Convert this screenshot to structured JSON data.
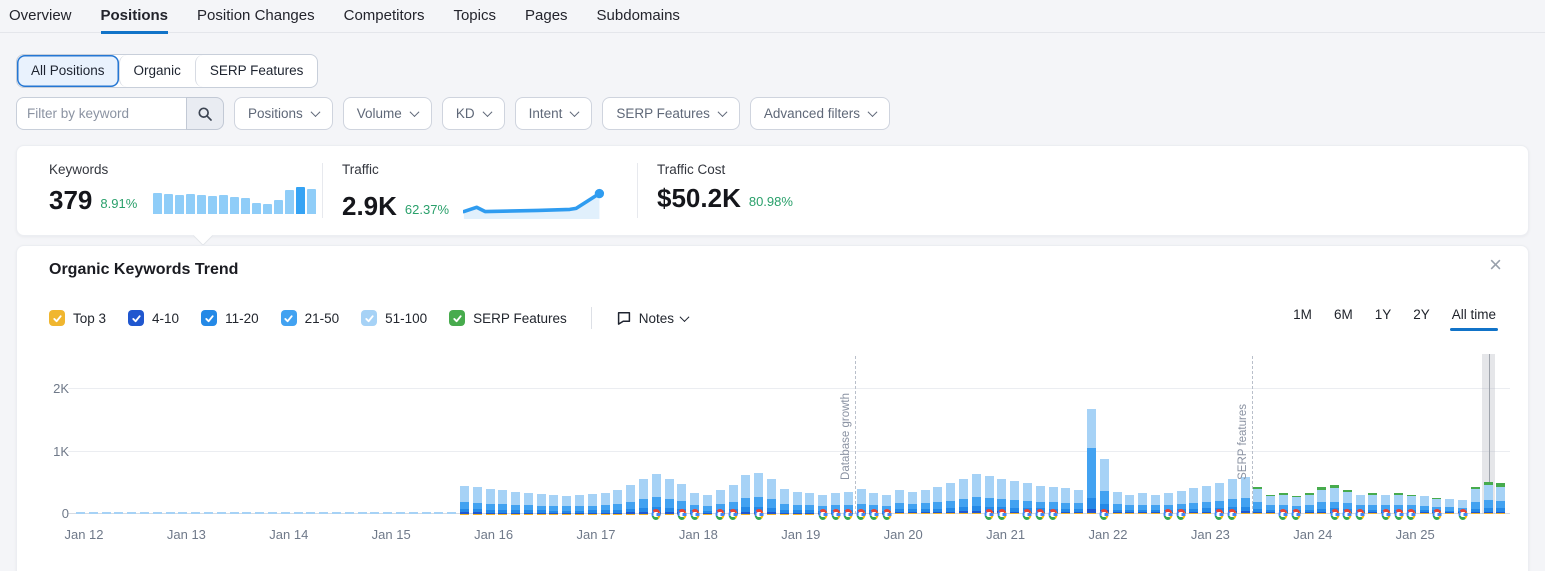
{
  "nav": {
    "active": "Positions",
    "items": [
      {
        "label": "Overview"
      },
      {
        "label": "Positions"
      },
      {
        "label": "Position Changes"
      },
      {
        "label": "Competitors"
      },
      {
        "label": "Topics"
      },
      {
        "label": "Pages"
      },
      {
        "label": "Subdomains"
      }
    ]
  },
  "tabs": {
    "active_index": 0,
    "items": [
      "All Positions",
      "Organic",
      "SERP Features"
    ]
  },
  "filters": {
    "keyword_placeholder": "Filter by keyword",
    "dropdowns": [
      "Positions",
      "Volume",
      "KD",
      "Intent",
      "SERP Features",
      "Advanced filters"
    ]
  },
  "metrics": {
    "keywords": {
      "label": "Keywords",
      "value": "379",
      "change": "8.91%",
      "bars": [
        21,
        20,
        19,
        20,
        19,
        18,
        19,
        17,
        16,
        11,
        10,
        14,
        24,
        27,
        25
      ],
      "bar_highlight_index": 13
    },
    "traffic": {
      "label": "Traffic",
      "value": "2.9K",
      "change": "62.37%",
      "spark_points": [
        [
          0,
          26
        ],
        [
          12,
          22
        ],
        [
          20,
          26
        ],
        [
          70,
          25
        ],
        [
          100,
          24
        ],
        [
          106,
          23
        ],
        [
          128,
          9
        ]
      ],
      "spark_dot": [
        128,
        9
      ]
    },
    "traffic_cost": {
      "label": "Traffic Cost",
      "value": "$50.2K",
      "change": "80.98%"
    }
  },
  "chart": {
    "title": "Organic Keywords Trend",
    "notes_label": "Notes",
    "close_label": "×",
    "ranges": [
      "1M",
      "6M",
      "1Y",
      "2Y",
      "All time"
    ],
    "active_range": "All time",
    "legend": [
      {
        "key": "top3",
        "label": "Top 3",
        "color": "#f0b62f",
        "checked": true
      },
      {
        "key": "p4_10",
        "label": "4-10",
        "color": "#2057cf",
        "checked": true
      },
      {
        "key": "p11_20",
        "label": "11-20",
        "color": "#2489e6",
        "checked": true
      },
      {
        "key": "p21_50",
        "label": "21-50",
        "color": "#42a2f1",
        "checked": true
      },
      {
        "key": "p51_100",
        "label": "51-100",
        "color": "#a6d2f6",
        "checked": true
      },
      {
        "key": "serp",
        "label": "SERP Features",
        "color": "#47ab4d",
        "checked": true
      }
    ]
  },
  "chart_data": {
    "type": "bar",
    "title": "Organic Keywords Trend",
    "stacked": true,
    "series_order": [
      "Top 3",
      "4-10",
      "11-20",
      "21-50",
      "51-100",
      "SERP Features"
    ],
    "series_colors": [
      "#f0b62f",
      "#2057cf",
      "#2489e6",
      "#42a2f1",
      "#a6d2f6",
      "#47ab4d"
    ],
    "y_axis": {
      "ticks": [
        0,
        1000,
        2000
      ],
      "labels": [
        "0",
        "1K",
        "2K"
      ],
      "ylim": [
        0,
        2560
      ]
    },
    "x_labels": [
      "Jan 12",
      "Jan 13",
      "Jan 14",
      "Jan 15",
      "Jan 16",
      "Jan 17",
      "Jan 18",
      "Jan 19",
      "Jan 20",
      "Jan 21",
      "Jan 22",
      "Jan 23",
      "Jan 24",
      "Jan 25"
    ],
    "bars_per_day": 8,
    "annotations": [
      {
        "label": "Database growth",
        "at_bar": 60.5
      },
      {
        "label": "SERP features",
        "at_bar": 91.5
      }
    ],
    "g_icon_indices": [
      45,
      47,
      48,
      50,
      51,
      53,
      58,
      59,
      60,
      61,
      62,
      63,
      71,
      72,
      74,
      75,
      76,
      80,
      85,
      86,
      89,
      90,
      94,
      95,
      98,
      99,
      100,
      102,
      103,
      104,
      106,
      108
    ],
    "highlight_index": 110,
    "bars": [
      [
        0,
        0,
        1,
        2,
        4,
        0
      ],
      [
        0,
        0,
        1,
        2,
        4,
        0
      ],
      [
        0,
        0,
        1,
        2,
        4,
        0
      ],
      [
        0,
        0,
        1,
        2,
        4,
        0
      ],
      [
        0,
        0,
        1,
        2,
        4,
        0
      ],
      [
        0,
        0,
        1,
        2,
        4,
        0
      ],
      [
        0,
        0,
        1,
        2,
        4,
        0
      ],
      [
        0,
        0,
        1,
        2,
        4,
        0
      ],
      [
        0,
        0,
        1,
        3,
        5,
        0
      ],
      [
        0,
        0,
        1,
        3,
        5,
        0
      ],
      [
        0,
        1,
        2,
        4,
        8,
        0
      ],
      [
        0,
        1,
        2,
        4,
        8,
        0
      ],
      [
        0,
        0,
        1,
        3,
        5,
        0
      ],
      [
        0,
        0,
        1,
        3,
        5,
        0
      ],
      [
        0,
        0,
        1,
        3,
        5,
        0
      ],
      [
        0,
        0,
        1,
        3,
        5,
        0
      ],
      [
        0,
        0,
        1,
        2,
        4,
        0
      ],
      [
        0,
        0,
        1,
        2,
        4,
        0
      ],
      [
        0,
        0,
        1,
        2,
        4,
        0
      ],
      [
        0,
        0,
        1,
        2,
        4,
        0
      ],
      [
        0,
        0,
        1,
        2,
        4,
        0
      ],
      [
        0,
        0,
        1,
        2,
        4,
        0
      ],
      [
        0,
        0,
        1,
        2,
        4,
        0
      ],
      [
        0,
        0,
        1,
        2,
        4,
        0
      ],
      [
        0,
        0,
        1,
        2,
        4,
        0
      ],
      [
        0,
        0,
        1,
        2,
        4,
        0
      ],
      [
        0,
        0,
        1,
        2,
        4,
        0
      ],
      [
        0,
        0,
        1,
        2,
        4,
        0
      ],
      [
        0,
        0,
        1,
        2,
        4,
        0
      ],
      [
        0,
        0,
        1,
        2,
        4,
        0
      ],
      [
        5,
        22,
        54,
        108,
        261,
        0
      ],
      [
        4,
        21,
        52,
        103,
        250,
        0
      ],
      [
        4,
        20,
        48,
        96,
        232,
        0
      ],
      [
        4,
        19,
        46,
        91,
        220,
        0
      ],
      [
        4,
        18,
        42,
        84,
        202,
        0
      ],
      [
        3,
        17,
        40,
        79,
        191,
        0
      ],
      [
        3,
        16,
        38,
        77,
        186,
        0
      ],
      [
        3,
        15,
        36,
        72,
        174,
        0
      ],
      [
        3,
        15,
        35,
        70,
        167,
        0
      ],
      [
        3,
        15,
        36,
        72,
        174,
        0
      ],
      [
        3,
        16,
        38,
        77,
        186,
        0
      ],
      [
        3,
        17,
        41,
        82,
        197,
        0
      ],
      [
        4,
        19,
        46,
        91,
        220,
        0
      ],
      [
        5,
        23,
        55,
        110,
        267,
        0
      ],
      [
        6,
        28,
        67,
        134,
        325,
        0
      ],
      [
        6,
        32,
        77,
        154,
        371,
        0
      ],
      [
        6,
        28,
        67,
        134,
        325,
        0
      ],
      [
        5,
        24,
        58,
        115,
        278,
        0
      ],
      [
        3,
        17,
        40,
        79,
        191,
        0
      ],
      [
        3,
        15,
        36,
        72,
        174,
        0
      ],
      [
        4,
        19,
        46,
        91,
        220,
        0
      ],
      [
        5,
        23,
        55,
        110,
        267,
        0
      ],
      [
        6,
        31,
        74,
        149,
        360,
        0
      ],
      [
        7,
        33,
        79,
        158,
        383,
        0
      ],
      [
        6,
        28,
        67,
        134,
        325,
        0
      ],
      [
        4,
        20,
        48,
        96,
        232,
        0
      ],
      [
        4,
        18,
        43,
        86,
        209,
        0
      ],
      [
        3,
        17,
        40,
        79,
        191,
        0
      ],
      [
        3,
        15,
        36,
        72,
        174,
        0
      ],
      [
        3,
        17,
        40,
        79,
        191,
        0
      ],
      [
        4,
        18,
        42,
        84,
        202,
        0
      ],
      [
        4,
        20,
        48,
        96,
        232,
        0
      ],
      [
        3,
        17,
        40,
        79,
        191,
        0
      ],
      [
        3,
        15,
        36,
        72,
        174,
        0
      ],
      [
        14,
        19,
        46,
        91,
        220,
        0
      ],
      [
        14,
        18,
        42,
        84,
        202,
        0
      ],
      [
        14,
        19,
        46,
        91,
        220,
        0
      ],
      [
        14,
        21,
        50,
        101,
        244,
        0
      ],
      [
        14,
        24,
        58,
        115,
        278,
        0
      ],
      [
        14,
        28,
        67,
        134,
        325,
        0
      ],
      [
        14,
        32,
        77,
        154,
        371,
        0
      ],
      [
        14,
        30,
        72,
        144,
        348,
        0
      ],
      [
        14,
        28,
        67,
        134,
        325,
        0
      ],
      [
        14,
        26,
        62,
        125,
        302,
        0
      ],
      [
        14,
        24,
        58,
        115,
        278,
        0
      ],
      [
        14,
        22,
        53,
        106,
        255,
        0
      ],
      [
        14,
        21,
        50,
        101,
        244,
        0
      ],
      [
        14,
        20,
        48,
        96,
        232,
        0
      ],
      [
        14,
        19,
        46,
        91,
        220,
        0
      ],
      [
        16,
        60,
        180,
        800,
        630,
        0
      ],
      [
        14,
        44,
        106,
        211,
        510,
        0
      ],
      [
        14,
        17,
        41,
        82,
        197,
        0
      ],
      [
        14,
        15,
        36,
        72,
        174,
        0
      ],
      [
        14,
        17,
        40,
        79,
        191,
        0
      ],
      [
        14,
        15,
        36,
        72,
        174,
        0
      ],
      [
        14,
        16,
        38,
        77,
        186,
        0
      ],
      [
        14,
        18,
        43,
        86,
        209,
        0
      ],
      [
        14,
        20,
        48,
        96,
        232,
        0
      ],
      [
        14,
        22,
        53,
        106,
        255,
        0
      ],
      [
        14,
        24,
        58,
        115,
        278,
        0
      ],
      [
        14,
        28,
        67,
        134,
        325,
        0
      ],
      [
        14,
        29,
        70,
        139,
        336,
        0
      ],
      [
        14,
        21,
        52,
        103,
        210,
        40
      ],
      [
        14,
        15,
        36,
        72,
        149,
        25
      ],
      [
        14,
        17,
        40,
        79,
        161,
        30
      ],
      [
        14,
        14,
        34,
        67,
        137,
        25
      ],
      [
        14,
        17,
        40,
        79,
        161,
        30
      ],
      [
        14,
        21,
        50,
        101,
        194,
        50
      ],
      [
        14,
        22,
        54,
        108,
        216,
        45
      ],
      [
        14,
        19,
        46,
        91,
        185,
        35
      ],
      [
        14,
        15,
        36,
        72,
        174,
        0
      ],
      [
        14,
        17,
        40,
        79,
        161,
        30
      ],
      [
        14,
        15,
        36,
        72,
        174,
        0
      ],
      [
        14,
        17,
        40,
        79,
        161,
        30
      ],
      [
        14,
        15,
        36,
        72,
        149,
        25
      ],
      [
        14,
        14,
        32,
        65,
        156,
        0
      ],
      [
        14,
        13,
        30,
        60,
        124,
        20
      ],
      [
        14,
        12,
        28,
        55,
        133,
        0
      ],
      [
        14,
        11,
        25,
        50,
        122,
        0
      ],
      [
        14,
        22,
        52,
        103,
        204,
        45
      ],
      [
        14,
        26,
        61,
        122,
        241,
        55
      ],
      [
        14,
        24,
        58,
        115,
        228,
        50
      ]
    ]
  }
}
